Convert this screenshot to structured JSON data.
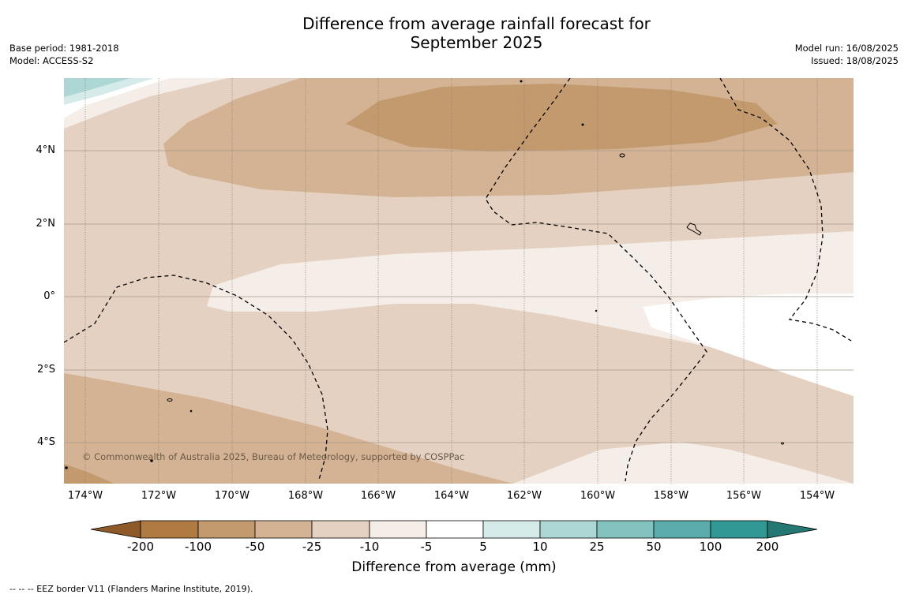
{
  "title_line1": "Difference from average rainfall forecast for",
  "title_line2": "September 2025",
  "base_period": "Base period: 1981-2018",
  "model": "Model: ACCESS-S2",
  "model_run": "Model run: 16/08/2025",
  "issued": "Issued: 18/08/2025",
  "lat_labels": [
    "4°N",
    "2°N",
    "0°",
    "2°S",
    "4°S"
  ],
  "lon_labels": [
    "174°W",
    "172°W",
    "170°W",
    "168°W",
    "166°W",
    "164°W",
    "162°W",
    "160°W",
    "158°W",
    "156°W",
    "154°W"
  ],
  "copyright": "© Commonwealth of Australia 2025, Bureau of Meteorology, supported by COSPPac",
  "colorbar": {
    "ticks": [
      "-200",
      "-100",
      "-50",
      "-25",
      "-10",
      "-5",
      "5",
      "10",
      "25",
      "50",
      "100",
      "200"
    ],
    "colors": [
      "#8f5a2a",
      "#b07b43",
      "#c29a6e",
      "#d3b393",
      "#e4d1c1",
      "#f5ede8",
      "#ffffff",
      "#d5ebe9",
      "#acd7d5",
      "#82c3bf",
      "#5aadaa",
      "#319895",
      "#237873"
    ],
    "label": "Difference from average (mm)"
  },
  "footer": "--  --  -- EEZ border V11 (Flanders Marine Institute, 2019)."
}
